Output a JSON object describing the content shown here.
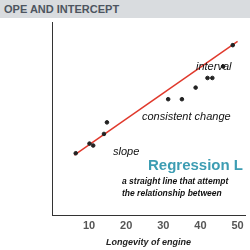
{
  "chart_data": {
    "type": "scatter",
    "title": "OPE AND INTERCEPT",
    "x_label": "Longevity of engine",
    "x": [
      6.4,
      10.1,
      11.1,
      14.0,
      14.8,
      31.3,
      35.0,
      38.7,
      41.9,
      43.2,
      46.1,
      48.7
    ],
    "values": [
      32,
      37,
      36,
      42,
      48,
      60,
      60,
      66,
      71,
      71,
      77,
      88
    ],
    "color": "#222222",
    "marker": "circle",
    "regression_line": {
      "x": [
        6,
        50
      ],
      "values": [
        31,
        90
      ],
      "color": "#e0392c"
    },
    "xlim": [
      0,
      52
    ],
    "xticks": [
      10,
      20,
      30,
      40,
      50
    ],
    "ylim": [
      0,
      100
    ],
    "tick_labels": "x",
    "grid": false,
    "annotations": [
      "interval",
      "consistent change",
      "slope"
    ],
    "note": {
      "heading": "Regression L",
      "color": "#3d9db3",
      "lines": [
        "a straight line that attempt",
        "the relationship between"
      ]
    }
  }
}
